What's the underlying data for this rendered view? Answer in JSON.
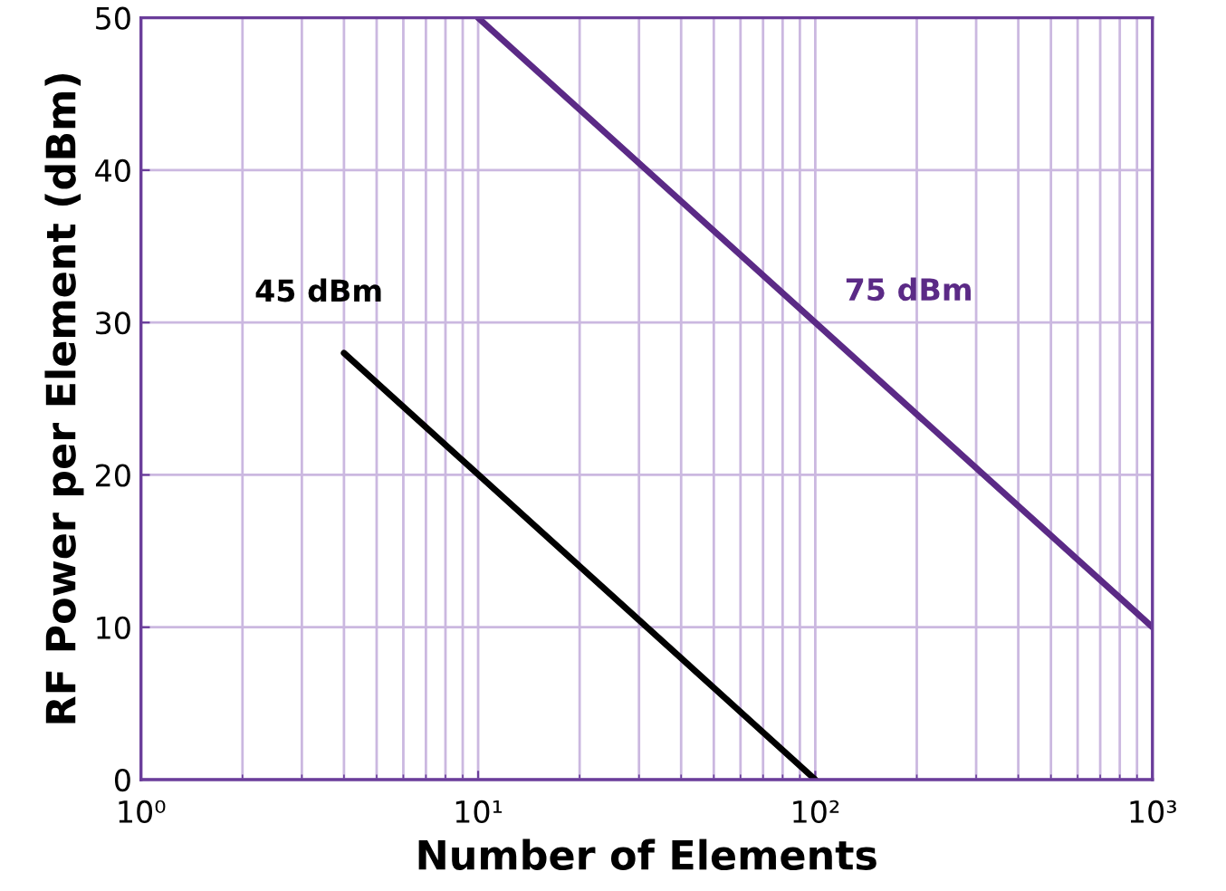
{
  "chart_data": {
    "type": "line",
    "xlabel": "Number of Elements",
    "ylabel": "RF Power per Element (dBm)",
    "log": "x",
    "xlim": [
      1,
      1000
    ],
    "ylim": [
      0,
      50
    ],
    "xticks": [
      {
        "value": 1,
        "label": "10⁰"
      },
      {
        "value": 10,
        "label": "10¹"
      },
      {
        "value": 100,
        "label": "10²"
      },
      {
        "value": 1000,
        "label": "10³"
      }
    ],
    "yticks": [
      0,
      10,
      20,
      30,
      40,
      50
    ],
    "grid": true,
    "marker": "none",
    "line_style": "solid",
    "series": [
      {
        "name": "45 dBm",
        "color": "#000000",
        "x": [
          4,
          100
        ],
        "values": [
          28,
          0
        ]
      },
      {
        "name": "75 dBm",
        "color": "#5b2a86",
        "x": [
          10,
          1000
        ],
        "values": [
          50,
          10
        ]
      }
    ]
  }
}
